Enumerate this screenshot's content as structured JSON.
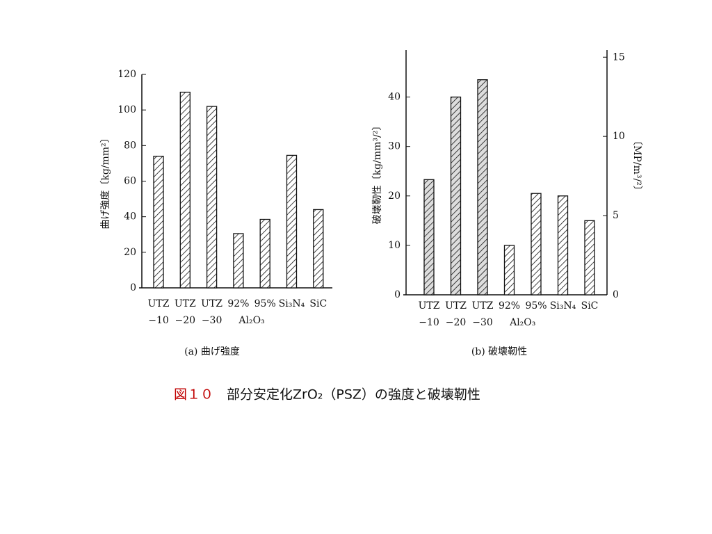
{
  "chart_data": [
    {
      "type": "bar",
      "title": "(a) 曲げ強度",
      "y_label": "曲げ強度〔kg/mm²〕",
      "categories": [
        "UTZ",
        "UTZ",
        "UTZ",
        "92%",
        "95%",
        "Si₃N₄",
        "SiC"
      ],
      "category_sublabels": [
        "−10",
        "−20",
        "−30",
        null,
        null,
        null,
        null
      ],
      "group_label": "Al₂O₃",
      "values": [
        74,
        110,
        102,
        30.5,
        38.5,
        74.5,
        44
      ],
      "ylim": [
        0,
        120
      ],
      "yticks": [
        0,
        20,
        40,
        60,
        80,
        100,
        120
      ]
    },
    {
      "type": "bar",
      "title": "(b) 破壊靭性",
      "y_label": "破壊靭性〔kg/mm³/²〕",
      "y2_label": "〔MP/m³/²〕",
      "categories": [
        "UTZ",
        "UTZ",
        "UTZ",
        "92%",
        "95%",
        "Si₃N₄",
        "SiC"
      ],
      "category_sublabels": [
        "−10",
        "−20",
        "−30",
        null,
        null,
        null,
        null
      ],
      "group_label": "Al₂O₃",
      "values": [
        23.3,
        40,
        43.5,
        10,
        20.5,
        20,
        15
      ],
      "ylim": [
        0,
        49.5
      ],
      "yticks": [
        0,
        10,
        20,
        30,
        40
      ],
      "y2lim": [
        0,
        15.45
      ],
      "y2ticks": [
        0,
        5,
        10,
        15
      ]
    }
  ],
  "caption": {
    "figure": "図１０",
    "text": "部分安定化ZrO₂（PSZ）の強度と破壊靭性"
  }
}
